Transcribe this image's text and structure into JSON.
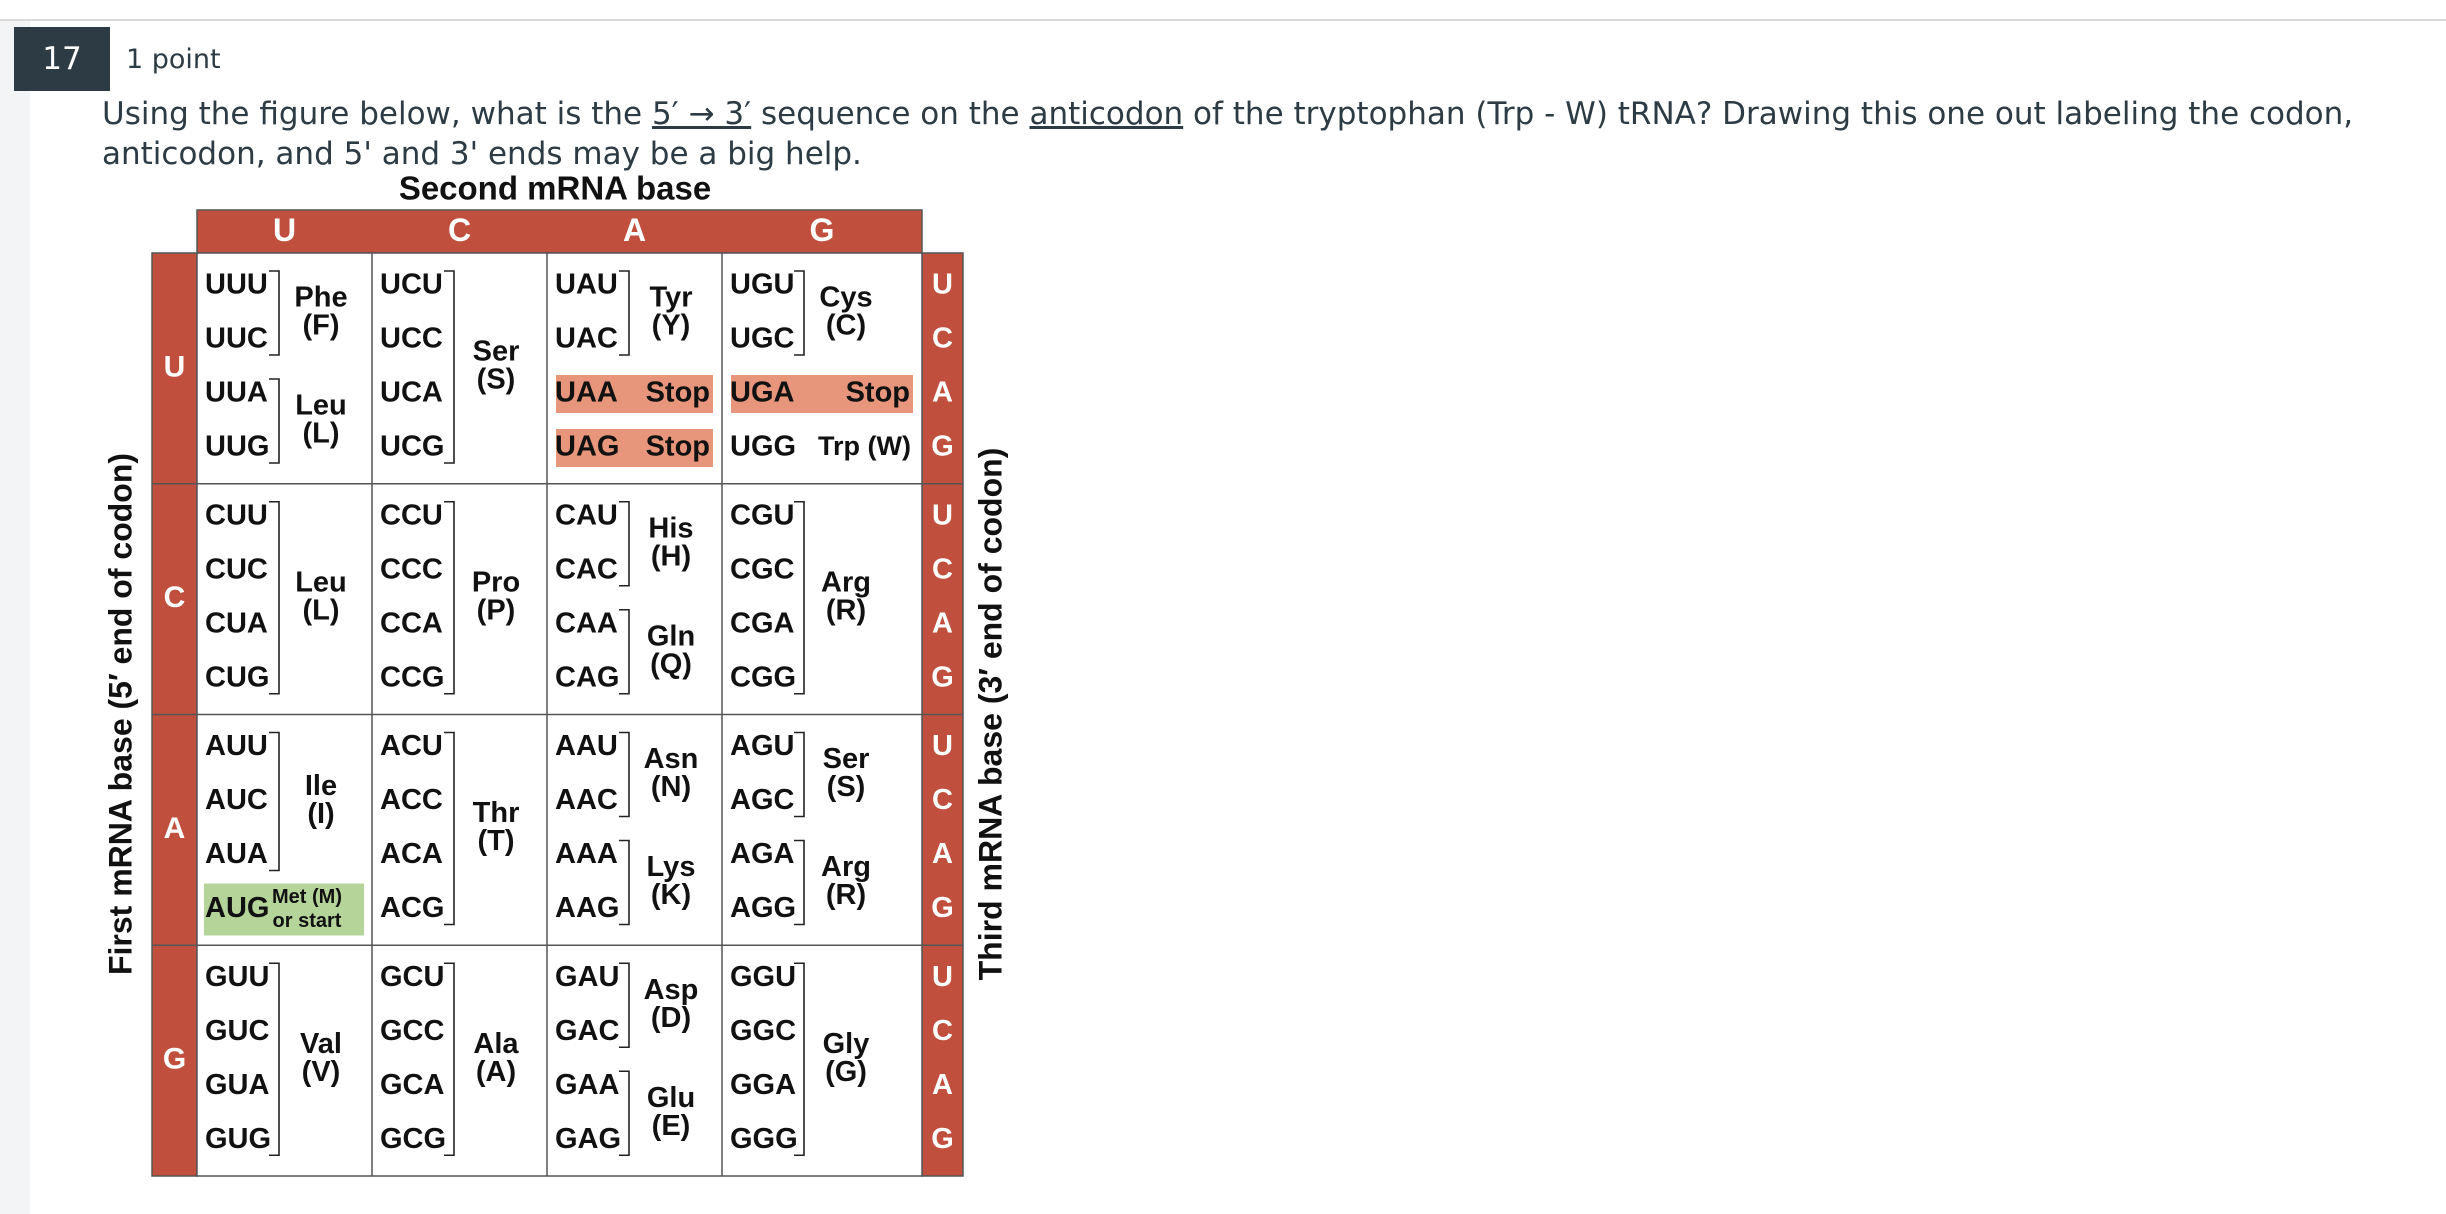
{
  "question": {
    "number": "17",
    "points": "1 point",
    "text_before": "Using the figure below, what is the ",
    "direction": "5′ → 3′",
    "text_middle": " sequence on the ",
    "anticodon": "anticodon",
    "text_after": " of the tryptophan (Trp - W) tRNA? Drawing this one out labeling the codon, anticodon, and 5' and 3' ends may be a big help."
  },
  "figure": {
    "title": "Second mRNA base",
    "left_axis": "First mRNA base (5′ end of codon)",
    "right_axis": "Third mRNA base (3′ end of codon)",
    "second_bases": [
      "U",
      "C",
      "A",
      "G"
    ],
    "first_bases": [
      "U",
      "C",
      "A",
      "G"
    ],
    "third_bases": [
      "U",
      "C",
      "A",
      "G"
    ],
    "colors": {
      "header": "#c0503d",
      "stop": "#e8967b",
      "start": "#b5d49a",
      "grid": "#555555"
    },
    "cells": [
      [
        {
          "codons": [
            "UUU",
            "UUC",
            "UUA",
            "UUG"
          ],
          "groups": [
            {
              "rows": [
                0,
                1
              ],
              "aa": "Phe",
              "code": "(F)"
            },
            {
              "rows": [
                2,
                3
              ],
              "aa": "Leu",
              "code": "(L)"
            }
          ]
        },
        {
          "codons": [
            "UCU",
            "UCC",
            "UCA",
            "UCG"
          ],
          "groups": [
            {
              "rows": [
                0,
                3
              ],
              "aa": "Ser",
              "code": "(S)"
            }
          ]
        },
        {
          "codons": [
            "UAU",
            "UAC",
            "UAA",
            "UAG"
          ],
          "groups": [
            {
              "rows": [
                0,
                1
              ],
              "aa": "Tyr",
              "code": "(Y)"
            }
          ],
          "stops": [
            2,
            3
          ],
          "stop_label": "Stop"
        },
        {
          "codons": [
            "UGU",
            "UGC",
            "UGA",
            "UGG"
          ],
          "groups": [
            {
              "rows": [
                0,
                1
              ],
              "aa": "Cys",
              "code": "(C)"
            }
          ],
          "stops": [
            2
          ],
          "stop_label": "Stop",
          "single": {
            "row": 3,
            "label": "Trp (W)"
          }
        }
      ],
      [
        {
          "codons": [
            "CUU",
            "CUC",
            "CUA",
            "CUG"
          ],
          "groups": [
            {
              "rows": [
                0,
                3
              ],
              "aa": "Leu",
              "code": "(L)"
            }
          ]
        },
        {
          "codons": [
            "CCU",
            "CCC",
            "CCA",
            "CCG"
          ],
          "groups": [
            {
              "rows": [
                0,
                3
              ],
              "aa": "Pro",
              "code": "(P)"
            }
          ]
        },
        {
          "codons": [
            "CAU",
            "CAC",
            "CAA",
            "CAG"
          ],
          "groups": [
            {
              "rows": [
                0,
                1
              ],
              "aa": "His",
              "code": "(H)"
            },
            {
              "rows": [
                2,
                3
              ],
              "aa": "Gln",
              "code": "(Q)"
            }
          ]
        },
        {
          "codons": [
            "CGU",
            "CGC",
            "CGA",
            "CGG"
          ],
          "groups": [
            {
              "rows": [
                0,
                3
              ],
              "aa": "Arg",
              "code": "(R)"
            }
          ]
        }
      ],
      [
        {
          "codons": [
            "AUU",
            "AUC",
            "AUA",
            "AUG"
          ],
          "groups": [
            {
              "rows": [
                0,
                2
              ],
              "aa": "Ile",
              "code": "(I)"
            }
          ],
          "start": {
            "row": 3,
            "line1": "Met (M)",
            "line2": "or start"
          }
        },
        {
          "codons": [
            "ACU",
            "ACC",
            "ACA",
            "ACG"
          ],
          "groups": [
            {
              "rows": [
                0,
                3
              ],
              "aa": "Thr",
              "code": "(T)"
            }
          ]
        },
        {
          "codons": [
            "AAU",
            "AAC",
            "AAA",
            "AAG"
          ],
          "groups": [
            {
              "rows": [
                0,
                1
              ],
              "aa": "Asn",
              "code": "(N)"
            },
            {
              "rows": [
                2,
                3
              ],
              "aa": "Lys",
              "code": "(K)"
            }
          ]
        },
        {
          "codons": [
            "AGU",
            "AGC",
            "AGA",
            "AGG"
          ],
          "groups": [
            {
              "rows": [
                0,
                1
              ],
              "aa": "Ser",
              "code": "(S)"
            },
            {
              "rows": [
                2,
                3
              ],
              "aa": "Arg",
              "code": "(R)"
            }
          ]
        }
      ],
      [
        {
          "codons": [
            "GUU",
            "GUC",
            "GUA",
            "GUG"
          ],
          "groups": [
            {
              "rows": [
                0,
                3
              ],
              "aa": "Val",
              "code": "(V)"
            }
          ]
        },
        {
          "codons": [
            "GCU",
            "GCC",
            "GCA",
            "GCG"
          ],
          "groups": [
            {
              "rows": [
                0,
                3
              ],
              "aa": "Ala",
              "code": "(A)"
            }
          ]
        },
        {
          "codons": [
            "GAU",
            "GAC",
            "GAA",
            "GAG"
          ],
          "groups": [
            {
              "rows": [
                0,
                1
              ],
              "aa": "Asp",
              "code": "(D)"
            },
            {
              "rows": [
                2,
                3
              ],
              "aa": "Glu",
              "code": "(E)"
            }
          ]
        },
        {
          "codons": [
            "GGU",
            "GGC",
            "GGA",
            "GGG"
          ],
          "groups": [
            {
              "rows": [
                0,
                3
              ],
              "aa": "Gly",
              "code": "(G)"
            }
          ]
        }
      ]
    ]
  }
}
